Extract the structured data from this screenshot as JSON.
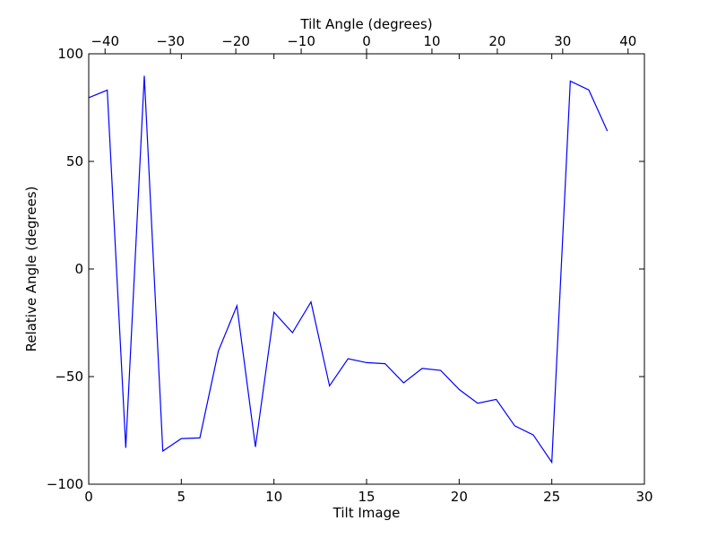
{
  "chart_data": {
    "type": "line",
    "xlabel": "Tilt Image",
    "ylabel": "Relative Angle (degrees)",
    "x2label": "Tilt Angle (degrees)",
    "xlim": [
      0,
      30
    ],
    "ylim": [
      -100,
      100
    ],
    "x2lim": [
      -42.5,
      42.5
    ],
    "xticks": [
      0,
      5,
      10,
      15,
      20,
      25,
      30
    ],
    "yticks": [
      -100,
      -50,
      0,
      50,
      100
    ],
    "x2ticks": [
      -40,
      -30,
      -20,
      -10,
      0,
      10,
      20,
      30,
      40
    ],
    "grid": false,
    "line_color": "#0000ff",
    "series": [
      {
        "x": [
          0,
          1,
          2,
          3,
          4,
          5,
          6,
          7,
          8,
          9,
          10,
          11,
          12,
          13,
          14,
          15,
          16,
          17,
          18,
          19,
          20,
          21,
          22,
          23,
          24,
          25,
          26,
          27,
          28
        ],
        "values": [
          79.6,
          83.1,
          -83.1,
          89.8,
          -84.6,
          -78.8,
          -78.5,
          -38.1,
          -17.1,
          -82.7,
          -20.1,
          -29.6,
          -15.3,
          -54.3,
          -41.7,
          -43.5,
          -44.0,
          -52.9,
          -46.2,
          -47.1,
          -56.0,
          -62.4,
          -60.6,
          -72.9,
          -77.1,
          -89.8,
          87.3,
          83.2,
          64.1
        ]
      }
    ]
  }
}
